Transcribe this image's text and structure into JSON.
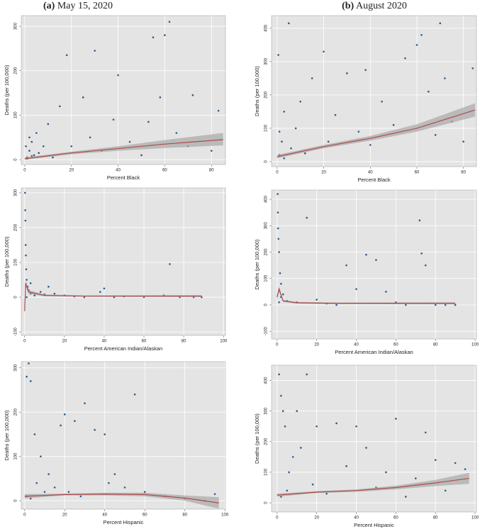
{
  "columns": [
    {
      "label": "(a)",
      "title": "May 15, 2020"
    },
    {
      "label": "(b)",
      "title": "August 2020"
    }
  ],
  "chart_data": [
    {
      "type": "scatter",
      "x_label": "Percent Black",
      "y_label": "Deaths (per 100,000)",
      "xlim": [
        -1.5,
        86
      ],
      "ylim": [
        -11,
        324
      ],
      "xticks": [
        0,
        20,
        40,
        60,
        80
      ],
      "yticks": [
        0,
        100,
        200,
        300
      ],
      "grid": true,
      "point_color": "#2b5b8c",
      "fit_color": "#b04a4a",
      "band_color": "#a8a8a8",
      "points": {
        "x": [
          1,
          2,
          3,
          4,
          5,
          6,
          8,
          10,
          12,
          15,
          18,
          20,
          25,
          28,
          30,
          33,
          38,
          40,
          45,
          50,
          53,
          55,
          58,
          60,
          62,
          65,
          70,
          72,
          80,
          83,
          1,
          3,
          2,
          0.5
        ],
        "y": [
          5,
          20,
          40,
          10,
          60,
          15,
          30,
          80,
          5,
          120,
          235,
          30,
          140,
          50,
          245,
          20,
          90,
          190,
          40,
          10,
          85,
          275,
          140,
          280,
          310,
          60,
          30,
          145,
          20,
          110,
          2,
          8,
          50,
          30
        ]
      },
      "fit": {
        "x": [
          0,
          20,
          40,
          60,
          85
        ],
        "y": [
          2,
          15,
          25,
          35,
          45
        ],
        "lower": [
          0,
          12,
          20,
          26,
          32
        ],
        "upper": [
          5,
          18,
          30,
          44,
          60
        ]
      }
    },
    {
      "type": "scatter",
      "x_label": "Percent Black",
      "y_label": "Deaths (per 100,000)",
      "xlim": [
        -2.4,
        85.6
      ],
      "ylim": [
        -15,
        438
      ],
      "xticks": [
        0,
        20,
        40,
        60,
        80
      ],
      "yticks": [
        0,
        100,
        200,
        300,
        400
      ],
      "grid": true,
      "point_color": "#2b5b8c",
      "fit_color": "#b04a4a",
      "band_color": "#a8a8a8",
      "points": {
        "x": [
          0.5,
          1,
          2,
          3,
          5,
          6,
          8,
          10,
          12,
          15,
          20,
          22,
          25,
          30,
          35,
          38,
          40,
          45,
          50,
          55,
          60,
          62,
          65,
          68,
          70,
          72,
          75,
          80,
          84,
          3,
          1
        ],
        "y": [
          320,
          20,
          60,
          150,
          415,
          40,
          100,
          180,
          25,
          250,
          330,
          60,
          140,
          265,
          90,
          275,
          50,
          180,
          110,
          310,
          350,
          380,
          210,
          80,
          415,
          250,
          120,
          60,
          280,
          10,
          90
        ]
      },
      "fit": {
        "x": [
          0,
          20,
          40,
          60,
          85
        ],
        "y": [
          15,
          45,
          70,
          100,
          155
        ],
        "lower": [
          10,
          40,
          63,
          90,
          135
        ],
        "upper": [
          20,
          50,
          77,
          112,
          175
        ]
      }
    },
    {
      "type": "scatter",
      "x_label": "Percent American Indian/Alaskan",
      "y_label": "Deaths (per 100,000)",
      "xlim": [
        -1.7,
        101
      ],
      "ylim": [
        -110,
        314
      ],
      "xticks": [
        0,
        20,
        40,
        60,
        80,
        100
      ],
      "yticks": [
        -100,
        0,
        100,
        200,
        300
      ],
      "grid": true,
      "point_color": "#2b5b8c",
      "fit_color": "#b04a4a",
      "band_color": "#a8a8a8",
      "points": {
        "x": [
          0.2,
          0.3,
          0.4,
          0.5,
          0.6,
          0.8,
          1,
          1.5,
          2,
          3,
          5,
          8,
          10,
          12,
          15,
          20,
          25,
          30,
          38,
          40,
          45,
          50,
          60,
          70,
          73,
          78,
          85,
          89,
          1,
          3
        ],
        "y": [
          300,
          250,
          220,
          150,
          120,
          80,
          50,
          30,
          20,
          10,
          5,
          15,
          8,
          30,
          10,
          5,
          2,
          0,
          15,
          25,
          0,
          2,
          0,
          5,
          95,
          0,
          0,
          0,
          0,
          40
        ]
      },
      "fit": {
        "x": [
          0,
          0.5,
          2,
          10,
          30,
          89
        ],
        "y": [
          -40,
          40,
          15,
          5,
          3,
          3
        ],
        "lower": [
          -55,
          30,
          10,
          2,
          1,
          0
        ],
        "upper": [
          -25,
          50,
          20,
          8,
          5,
          6
        ]
      }
    },
    {
      "type": "scatter",
      "x_label": "Percent American Indian/Alaskan",
      "y_label": "Deaths (per 100,000)",
      "xlim": [
        -2.8,
        100.7
      ],
      "ylim": [
        -129,
        435
      ],
      "xticks": [
        0,
        20,
        40,
        60,
        80,
        100
      ],
      "yticks": [
        -100,
        0,
        100,
        200,
        300,
        400
      ],
      "grid": true,
      "point_color": "#2b5b8c",
      "fit_color": "#b04a4a",
      "band_color": "#a8a8a8",
      "points": {
        "x": [
          0.3,
          0.4,
          0.5,
          0.7,
          1,
          1.5,
          2,
          3,
          5,
          10,
          15,
          20,
          25,
          30,
          35,
          40,
          45,
          50,
          55,
          60,
          65,
          72,
          73,
          75,
          80,
          85,
          90,
          1,
          2
        ],
        "y": [
          420,
          350,
          290,
          250,
          200,
          120,
          80,
          40,
          15,
          10,
          330,
          20,
          5,
          0,
          150,
          60,
          190,
          170,
          50,
          10,
          0,
          320,
          195,
          150,
          0,
          0,
          0,
          10,
          30
        ]
      },
      "fit": {
        "x": [
          0,
          1,
          3,
          10,
          30,
          90
        ],
        "y": [
          30,
          60,
          15,
          8,
          6,
          6
        ],
        "lower": [
          20,
          50,
          11,
          5,
          3,
          2
        ],
        "upper": [
          40,
          70,
          19,
          11,
          9,
          10
        ]
      }
    },
    {
      "type": "scatter",
      "x_label": "Percent Hispanic",
      "y_label": "Deaths (per 100,000)",
      "xlim": [
        -1.7,
        100.3
      ],
      "ylim": [
        -19,
        314
      ],
      "xticks": [
        0,
        20,
        40,
        60,
        80,
        100
      ],
      "yticks": [
        0,
        100,
        200,
        300
      ],
      "grid": true,
      "point_color": "#2b5b8c",
      "fit_color": "#b04a4a",
      "band_color": "#a8a8a8",
      "points": {
        "x": [
          1,
          2,
          3,
          5,
          6,
          8,
          10,
          12,
          15,
          18,
          20,
          22,
          25,
          28,
          30,
          35,
          40,
          42,
          45,
          50,
          55,
          60,
          70,
          80,
          90,
          95,
          3,
          1
        ],
        "y": [
          280,
          310,
          270,
          150,
          40,
          100,
          20,
          60,
          30,
          170,
          195,
          20,
          180,
          10,
          220,
          160,
          150,
          40,
          60,
          30,
          240,
          20,
          10,
          5,
          0,
          15,
          5,
          10
        ]
      },
      "fit": {
        "x": [
          0,
          20,
          40,
          60,
          80,
          97
        ],
        "y": [
          10,
          14,
          15,
          14,
          6,
          -5
        ],
        "lower": [
          5,
          12,
          12,
          10,
          0,
          -18
        ],
        "upper": [
          15,
          16,
          18,
          18,
          12,
          8
        ]
      }
    },
    {
      "type": "scatter",
      "x_label": "Percent Hispanic",
      "y_label": "Deaths (per 100,000)",
      "xlim": [
        -2.8,
        100.7
      ],
      "ylim": [
        -30,
        450
      ],
      "xticks": [
        0,
        20,
        40,
        60,
        80,
        100
      ],
      "yticks": [
        0,
        100,
        200,
        300,
        400
      ],
      "grid": true,
      "point_color": "#2b5b8c",
      "fit_color": "#b04a4a",
      "band_color": "#a8a8a8",
      "points": {
        "x": [
          1,
          2,
          3,
          4,
          6,
          8,
          10,
          12,
          15,
          18,
          20,
          25,
          30,
          35,
          40,
          45,
          50,
          55,
          60,
          65,
          70,
          75,
          80,
          85,
          90,
          95,
          2,
          5
        ],
        "y": [
          420,
          350,
          300,
          250,
          100,
          150,
          300,
          180,
          420,
          60,
          250,
          30,
          260,
          120,
          250,
          180,
          50,
          100,
          275,
          20,
          80,
          230,
          140,
          40,
          130,
          110,
          20,
          40
        ]
      },
      "fit": {
        "x": [
          0,
          20,
          40,
          60,
          80,
          97
        ],
        "y": [
          25,
          35,
          40,
          50,
          65,
          80
        ],
        "lower": [
          20,
          32,
          36,
          44,
          55,
          62
        ],
        "upper": [
          30,
          38,
          44,
          56,
          75,
          98
        ]
      }
    }
  ]
}
